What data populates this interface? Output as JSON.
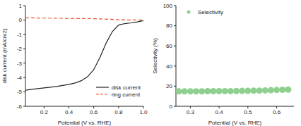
{
  "chart_data": [
    {
      "type": "line",
      "x_label": "Potential (V vs. RHE)",
      "y_label": "disk current (mA/cm2)",
      "x": [
        0.05,
        0.1,
        0.15,
        0.2,
        0.25,
        0.3,
        0.35,
        0.4,
        0.45,
        0.5,
        0.55,
        0.6,
        0.65,
        0.7,
        0.75,
        0.8,
        0.85,
        0.9,
        0.95,
        1.0
      ],
      "series": [
        {
          "name": "disk current",
          "color": "#222222",
          "line_style": "solid",
          "values": [
            -4.88,
            -4.82,
            -4.77,
            -4.72,
            -4.67,
            -4.62,
            -4.55,
            -4.48,
            -4.38,
            -4.22,
            -3.95,
            -3.45,
            -2.6,
            -1.6,
            -0.8,
            -0.35,
            -0.25,
            -0.2,
            -0.13,
            -0.05
          ]
        },
        {
          "name": "ring current",
          "color": "#e8502a",
          "line_style": "dashed",
          "values": [
            0.15,
            0.15,
            0.14,
            0.13,
            0.13,
            0.12,
            0.12,
            0.11,
            0.11,
            0.1,
            0.1,
            0.09,
            0.08,
            0.06,
            0.04,
            0.02,
            0.01,
            0.0,
            0.0,
            0.0
          ]
        }
      ],
      "xlim": [
        0.05,
        1.0
      ],
      "xticks": [
        0.2,
        0.4,
        0.6,
        0.8,
        {
          "value": 1,
          "label": "1.0"
        }
      ],
      "ylim": [
        -6,
        1
      ],
      "yticks": [
        -6,
        -5,
        -4,
        -3,
        -2,
        -1,
        0,
        1
      ],
      "legend": "bottom right"
    },
    {
      "type": "scatter",
      "x_label": "Potential (V vs. RHE)",
      "y_label": "Selectivity (%)",
      "x": [
        0.26,
        0.28,
        0.3,
        0.32,
        0.34,
        0.36,
        0.38,
        0.4,
        0.42,
        0.44,
        0.46,
        0.48,
        0.5,
        0.52,
        0.54,
        0.56,
        0.58,
        0.6,
        0.62,
        0.64
      ],
      "series": [
        {
          "name": "Selectivity",
          "color": "#8fcf8f",
          "marker": "circle",
          "values": [
            14.8,
            14.8,
            14.9,
            14.9,
            14.9,
            15.0,
            15.0,
            15.0,
            15.1,
            15.1,
            15.2,
            15.3,
            15.4,
            15.5,
            15.6,
            15.8,
            16.0,
            16.2,
            16.4,
            16.6
          ]
        }
      ],
      "xlim": [
        0.25,
        0.66
      ],
      "xticks": [
        0.3,
        0.4,
        0.5,
        0.6
      ],
      "ylim": [
        0,
        100
      ],
      "yticks": [
        0,
        20,
        40,
        60,
        80,
        100
      ],
      "legend": "top left"
    }
  ]
}
